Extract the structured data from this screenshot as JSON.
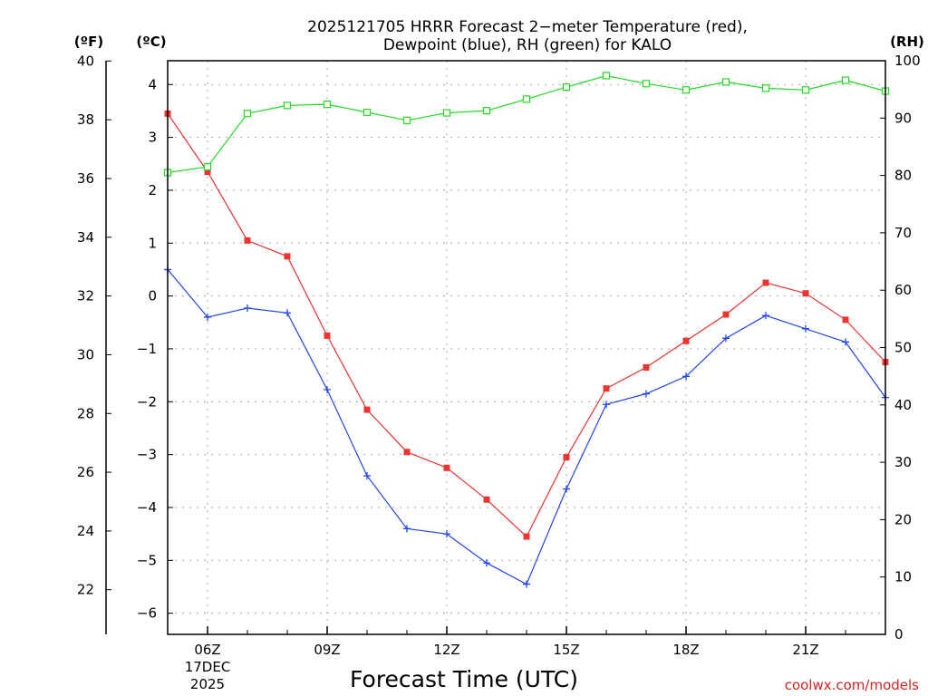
{
  "chart_data": {
    "type": "line",
    "title_line1": "2025121705 HRRR Forecast 2−meter Temperature (red),",
    "title_line2": "Dewpoint (blue), RH (green) for KALO",
    "xlabel": "Forecast Time (UTC)",
    "credit": "coolwx.com/models",
    "unit_labels": {
      "fahrenheit": "(ºF)",
      "celsius": "(ºC)",
      "rh": "(RH)"
    },
    "x_hours": [
      5,
      6,
      7,
      8,
      9,
      10,
      11,
      12,
      13,
      14,
      15,
      16,
      17,
      18,
      19,
      20,
      21,
      22,
      23
    ],
    "x_ticks": [
      {
        "hour": 6,
        "label": "06Z",
        "sub1": "17DEC",
        "sub2": "2025"
      },
      {
        "hour": 9,
        "label": "09Z"
      },
      {
        "hour": 12,
        "label": "12Z"
      },
      {
        "hour": 15,
        "label": "15Z"
      },
      {
        "hour": 18,
        "label": "18Z"
      },
      {
        "hour": 21,
        "label": "21Z"
      }
    ],
    "celsius_axis": {
      "min": -6.4,
      "max": 4.45,
      "ticks": [
        4,
        3,
        2,
        1,
        0,
        -1,
        -2,
        -3,
        -4,
        -5,
        -6
      ]
    },
    "fahrenheit_axis": {
      "min": 20.48,
      "max": 40.01,
      "ticks": [
        40,
        38,
        36,
        34,
        32,
        30,
        28,
        26,
        24,
        22
      ]
    },
    "rh_axis": {
      "min": 0,
      "max": 100,
      "ticks": [
        100,
        90,
        80,
        70,
        60,
        50,
        40,
        30,
        20,
        10,
        0
      ]
    },
    "series": [
      {
        "name": "Temperature",
        "unit": "C",
        "color": "#ee3333",
        "marker": "filled-square",
        "values": [
          3.45,
          2.35,
          1.05,
          0.75,
          -0.75,
          -2.15,
          -2.95,
          -3.25,
          -3.85,
          -4.55,
          -3.05,
          -1.75,
          -1.35,
          -0.85,
          -0.35,
          0.25,
          0.05,
          -0.45,
          -1.25
        ]
      },
      {
        "name": "Dewpoint",
        "unit": "C",
        "color": "#2244ee",
        "marker": "plus",
        "values": [
          0.5,
          -0.4,
          -0.23,
          -0.32,
          -1.77,
          -3.4,
          -4.4,
          -4.5,
          -5.05,
          -5.45,
          -3.65,
          -2.05,
          -1.85,
          -1.52,
          -0.8,
          -0.37,
          -0.62,
          -0.87,
          -1.92
        ]
      },
      {
        "name": "RH",
        "unit": "%",
        "color": "#22dd22",
        "marker": "open-square",
        "values": [
          80.5,
          81.5,
          90.8,
          92.2,
          92.4,
          91,
          89.6,
          90.9,
          91.3,
          93.3,
          95.4,
          97.4,
          96,
          94.9,
          96.3,
          95.2,
          94.9,
          96.6,
          94.7
        ]
      }
    ]
  }
}
